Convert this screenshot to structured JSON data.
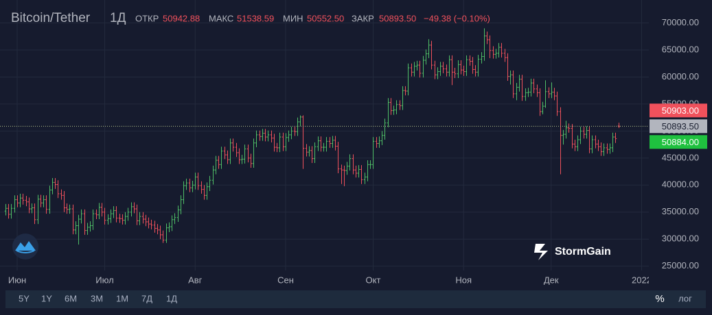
{
  "header": {
    "symbol": "Bitcoin/Tether",
    "interval": "1Д",
    "open_label": "ОТКР",
    "open": "50942.88",
    "high_label": "МАКС",
    "high": "51538.59",
    "low_label": "МИН",
    "low": "50552.50",
    "close_label": "ЗАКР",
    "close": "50893.50",
    "change": "−49.38 (−0.10%)"
  },
  "logo": "StormGain",
  "toolbar": {
    "ranges": [
      "5Y",
      "1Y",
      "6M",
      "3M",
      "1M",
      "7Д",
      "1Д"
    ],
    "percent": "%",
    "log": "лог"
  },
  "chart_data": {
    "type": "ohlc",
    "up_color": "#4fbf67",
    "down_color": "#f0515c",
    "grid": true,
    "xlim": [
      -1.88,
      220.47
    ],
    "xticks": [
      {
        "value": 4,
        "label": "Июн"
      },
      {
        "value": 34,
        "label": "Июл"
      },
      {
        "value": 65,
        "label": "Авг"
      },
      {
        "value": 96,
        "label": "Сен"
      },
      {
        "value": 126,
        "label": "Окт"
      },
      {
        "value": 157,
        "label": "Ноя"
      },
      {
        "value": 187,
        "label": "Дек"
      },
      {
        "value": 218,
        "label": "2022"
      }
    ],
    "ylim": [
      24200,
      74250
    ],
    "yticks": [
      {
        "value": 25000,
        "label": "25000.00"
      },
      {
        "value": 30000,
        "label": "30000.00"
      },
      {
        "value": 35000,
        "label": "35000.00"
      },
      {
        "value": 40000,
        "label": "40000.00"
      },
      {
        "value": 45000,
        "label": "45000.00"
      },
      {
        "value": 50000,
        "label": "50000.00"
      },
      {
        "value": 55000,
        "label": "55000.00"
      },
      {
        "value": 60000,
        "label": "60000.00"
      },
      {
        "value": 65000,
        "label": "65000.00"
      },
      {
        "value": 70000,
        "label": "70000.00"
      }
    ],
    "price_labels": [
      {
        "value": 50903,
        "label": "50903.00",
        "color": "#f0515c"
      },
      {
        "value": 50893.5,
        "label": "50893.50",
        "color": "#b2b5be"
      },
      {
        "value": 50884,
        "label": "50884.00",
        "color": "#1fc13f"
      }
    ],
    "open": [
      35200,
      35700,
      34600,
      35700,
      37300,
      36700,
      37600,
      37200,
      36900,
      35600,
      35800,
      33600,
      37400,
      36700,
      37300,
      35500,
      39100,
      40500,
      40100,
      38400,
      38100,
      35800,
      35500,
      35600,
      31700,
      32500,
      33700,
      34700,
      31600,
      32200,
      32500,
      34700,
      34500,
      35900,
      35000,
      33500,
      33800,
      34700,
      35300,
      33900,
      33800,
      33500,
      34200,
      35000,
      36000,
      35600,
      33400,
      34200,
      33700,
      33200,
      32800,
      32600,
      32000,
      31700,
      30800,
      29800,
      32100,
      32300,
      33600,
      34000,
      35400,
      37300,
      39900,
      40400,
      39500,
      40000,
      41500,
      39900,
      39200,
      38100,
      39700,
      40900,
      42800,
      44600,
      43800,
      46300,
      45600,
      44700,
      47800,
      47000,
      46000,
      44700,
      44800,
      46700,
      45000,
      44000,
      47800,
      49300,
      49000,
      49600,
      48900,
      49300,
      48700,
      47000,
      46900,
      48900,
      47100,
      48800,
      49300,
      50000,
      49900,
      51700,
      52600,
      46800,
      46100,
      46400,
      44900,
      47100,
      48200,
      47000,
      47000,
      48100,
      47700,
      48300,
      47200,
      43000,
      42800,
      42700,
      43500,
      44900,
      42800,
      42200,
      42900,
      41000,
      41500,
      43800,
      43800,
      48100,
      47700,
      48200,
      49200,
      51500,
      55300,
      53800,
      53900,
      54900,
      54700,
      57500,
      57400,
      61700,
      60900,
      62000,
      62200,
      60700,
      63100,
      64300,
      65900,
      62200,
      60400,
      61000,
      62000,
      61500,
      60900,
      63200,
      60900,
      60600,
      62300,
      61300,
      61000,
      63200,
      62900,
      61400,
      60900,
      63300,
      63800,
      67600,
      66900,
      64900,
      64200,
      64400,
      65500,
      64400,
      63600,
      60100,
      60400,
      56900,
      58100,
      59600,
      56400,
      57100,
      57200,
      58900,
      57800,
      57100,
      53600,
      54600,
      57300,
      56900,
      57200,
      56500,
      53600,
      49200,
      49400,
      50600,
      50500,
      47600,
      47100,
      48400,
      50000,
      49400,
      50100,
      46700,
      48400,
      47600,
      47100,
      46200,
      46900,
      46600,
      46900,
      48900,
      50942.88
    ],
    "high": [
      36500,
      36500,
      36500,
      38100,
      38100,
      38400,
      38400,
      38000,
      37700,
      36600,
      36600,
      38200,
      38200,
      38100,
      38100,
      39900,
      41300,
      41300,
      40900,
      39200,
      38900,
      36600,
      36400,
      36400,
      33300,
      34500,
      35500,
      35500,
      33000,
      33300,
      35500,
      35500,
      36700,
      36700,
      35800,
      34600,
      35500,
      36100,
      36100,
      34700,
      34600,
      35000,
      35800,
      36800,
      36800,
      36400,
      35000,
      35000,
      34500,
      34000,
      33600,
      33400,
      32800,
      32500,
      31600,
      32900,
      33100,
      34400,
      34800,
      36200,
      38100,
      40700,
      41200,
      41200,
      40800,
      42300,
      42300,
      40700,
      40000,
      40500,
      41700,
      43600,
      45400,
      45400,
      47100,
      47100,
      46400,
      48600,
      48600,
      47800,
      46800,
      45600,
      47500,
      47500,
      45800,
      48600,
      50100,
      50100,
      50400,
      50400,
      50100,
      50100,
      49500,
      47800,
      49700,
      49700,
      49600,
      50100,
      50800,
      50800,
      52500,
      52900,
      52900,
      47600,
      47200,
      47200,
      47900,
      49000,
      49000,
      47800,
      48900,
      48900,
      49100,
      49100,
      48000,
      43800,
      43600,
      44300,
      45700,
      45700,
      43600,
      43700,
      43700,
      42300,
      44600,
      44600,
      48900,
      48900,
      49000,
      50000,
      52300,
      56100,
      56100,
      54700,
      55700,
      55700,
      58300,
      58300,
      62500,
      62500,
      62800,
      63000,
      63000,
      63900,
      65100,
      67000,
      66700,
      63000,
      61800,
      62800,
      62800,
      62300,
      64000,
      64000,
      61700,
      63100,
      63100,
      62100,
      64000,
      64000,
      63700,
      62200,
      64100,
      64600,
      69000,
      68400,
      67700,
      65700,
      65200,
      66300,
      66300,
      65200,
      64400,
      61200,
      61200,
      58900,
      60400,
      60400,
      57900,
      58000,
      59700,
      59700,
      58600,
      57900,
      55400,
      59400,
      58100,
      59000,
      58000,
      57300,
      54400,
      50200,
      51900,
      51400,
      51300,
      48400,
      49200,
      50800,
      50800,
      50900,
      50900,
      49200,
      49200,
      48400,
      47900,
      47700,
      47700,
      47700,
      49700,
      49700,
      51538.59
    ],
    "low": [
      34400,
      33800,
      33800,
      34900,
      35900,
      35900,
      36400,
      36100,
      34800,
      34800,
      32800,
      32800,
      35900,
      35900,
      34700,
      34700,
      38300,
      39300,
      37600,
      37300,
      35000,
      34700,
      34700,
      30900,
      30900,
      29000,
      32900,
      30800,
      30800,
      31400,
      31700,
      33700,
      33700,
      34200,
      32700,
      32700,
      33000,
      33900,
      33100,
      33000,
      32700,
      32700,
      33400,
      34200,
      34800,
      32600,
      32600,
      32900,
      32400,
      32000,
      31800,
      31200,
      30900,
      30000,
      29300,
      29300,
      31300,
      31500,
      32800,
      33200,
      34600,
      36500,
      39100,
      38700,
      38700,
      39200,
      39100,
      38400,
      37300,
      37300,
      38900,
      40100,
      42000,
      43000,
      43000,
      44800,
      43900,
      43900,
      46200,
      45200,
      43900,
      43900,
      44000,
      44200,
      43200,
      43200,
      47000,
      48200,
      48200,
      48100,
      48100,
      47900,
      46200,
      46100,
      46100,
      46300,
      46300,
      48000,
      48500,
      49100,
      49100,
      50900,
      43000,
      45300,
      45300,
      44100,
      44100,
      46300,
      46200,
      46200,
      46200,
      46900,
      46900,
      46400,
      42200,
      40200,
      39800,
      41900,
      42700,
      42000,
      41400,
      41400,
      40200,
      40200,
      40700,
      43000,
      43000,
      46900,
      46900,
      47400,
      48400,
      50700,
      53000,
      53000,
      53100,
      53900,
      53900,
      56600,
      56600,
      60100,
      60100,
      61200,
      59900,
      59900,
      62300,
      63500,
      61400,
      59600,
      59600,
      60200,
      60700,
      60100,
      60100,
      58500,
      59800,
      59800,
      60500,
      60200,
      60200,
      62100,
      60600,
      60100,
      60100,
      62500,
      63000,
      66100,
      63500,
      63400,
      63400,
      63600,
      63600,
      62800,
      59300,
      58600,
      56100,
      55700,
      57300,
      55600,
      55600,
      56300,
      56400,
      57000,
      56300,
      52800,
      53100,
      54300,
      56100,
      56100,
      55700,
      52800,
      42000,
      47500,
      48600,
      49700,
      46800,
      46300,
      46300,
      47600,
      48600,
      48600,
      45900,
      45900,
      46800,
      46300,
      45400,
      45400,
      45800,
      45800,
      46100,
      47800,
      50552.5
    ],
    "close": [
      35700,
      34600,
      35700,
      37300,
      36700,
      37600,
      37200,
      36900,
      35600,
      35800,
      33600,
      37400,
      36700,
      37300,
      35500,
      39100,
      40500,
      40100,
      38400,
      38100,
      35800,
      35500,
      35600,
      31700,
      32500,
      33700,
      34700,
      31600,
      32200,
      32500,
      34700,
      34500,
      35900,
      35000,
      33500,
      33800,
      34700,
      35300,
      33900,
      33800,
      33500,
      34200,
      35000,
      36000,
      35600,
      33400,
      34200,
      33700,
      33200,
      32800,
      32600,
      32000,
      31700,
      30800,
      29800,
      32100,
      32300,
      33600,
      34000,
      35400,
      37300,
      39900,
      40400,
      39500,
      40000,
      41500,
      39900,
      39200,
      38100,
      39700,
      40900,
      42800,
      44600,
      43800,
      46300,
      45600,
      44700,
      47800,
      47000,
      46000,
      44700,
      44800,
      46700,
      45000,
      44000,
      47800,
      49300,
      49000,
      49600,
      48900,
      49300,
      48700,
      47000,
      46900,
      48900,
      47100,
      48800,
      49300,
      50000,
      49900,
      51700,
      52600,
      46800,
      46100,
      46400,
      44900,
      47100,
      48200,
      47000,
      47000,
      48100,
      47700,
      48300,
      47200,
      43000,
      42800,
      42700,
      43500,
      44900,
      42800,
      42200,
      42900,
      41000,
      41500,
      43800,
      43800,
      48100,
      47700,
      48200,
      49200,
      51500,
      55300,
      53800,
      53900,
      54900,
      54700,
      57500,
      57400,
      61700,
      60900,
      62000,
      62200,
      60700,
      63100,
      64300,
      65900,
      62200,
      60400,
      61000,
      62000,
      61500,
      60900,
      63200,
      60900,
      60600,
      62300,
      61300,
      61000,
      63200,
      62900,
      61400,
      60900,
      63300,
      63800,
      67600,
      66900,
      64900,
      64200,
      64400,
      65500,
      64400,
      63600,
      60100,
      60400,
      56900,
      58100,
      59600,
      56400,
      57100,
      57200,
      58900,
      57800,
      57100,
      53600,
      54600,
      57300,
      56900,
      57200,
      56500,
      53600,
      49200,
      49400,
      50600,
      50500,
      47600,
      47100,
      48400,
      50000,
      49400,
      50100,
      46700,
      48400,
      47600,
      47100,
      46200,
      46900,
      46600,
      46900,
      48900,
      48600,
      50893.5
    ]
  }
}
